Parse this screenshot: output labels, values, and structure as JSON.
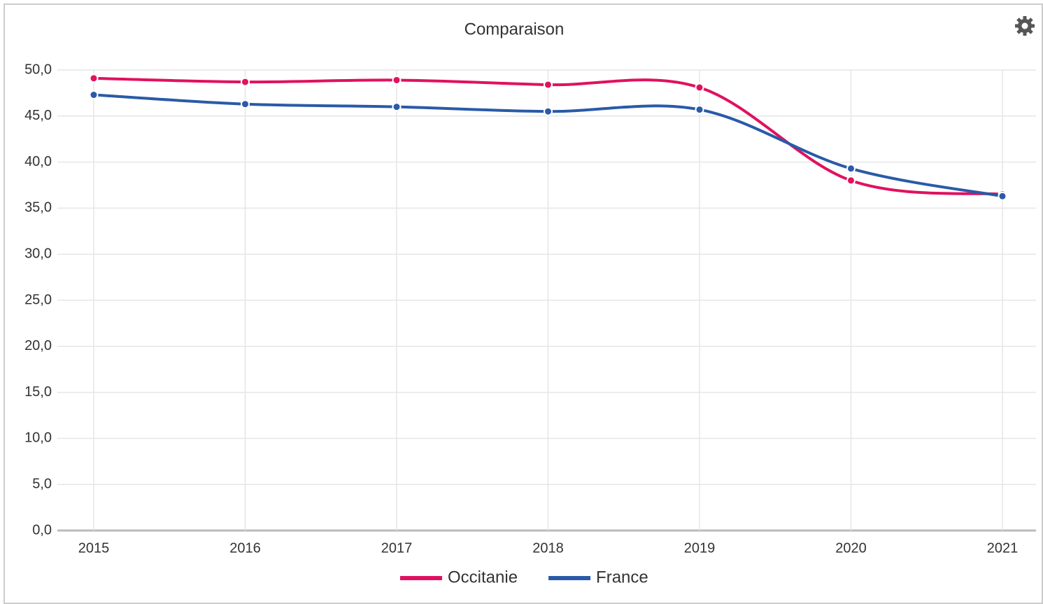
{
  "chart_data": {
    "type": "line",
    "title": "Comparaison",
    "categories": [
      "2015",
      "2016",
      "2017",
      "2018",
      "2019",
      "2020",
      "2021"
    ],
    "series": [
      {
        "name": "Occitanie",
        "color": "#e0115f",
        "values": [
          49.1,
          48.7,
          48.9,
          48.4,
          48.1,
          38.0,
          36.5
        ]
      },
      {
        "name": "France",
        "color": "#2a5aa8",
        "values": [
          47.3,
          46.3,
          46.0,
          45.5,
          45.7,
          39.3,
          36.3
        ]
      }
    ],
    "ylim": [
      0,
      50
    ],
    "yticks": [
      {
        "value": 0,
        "label": "0,0"
      },
      {
        "value": 5,
        "label": "5,0"
      },
      {
        "value": 10,
        "label": "10,0"
      },
      {
        "value": 15,
        "label": "15,0"
      },
      {
        "value": 20,
        "label": "20,0"
      },
      {
        "value": 25,
        "label": "25,0"
      },
      {
        "value": 30,
        "label": "30,0"
      },
      {
        "value": 35,
        "label": "35,0"
      },
      {
        "value": 40,
        "label": "40,0"
      },
      {
        "value": 45,
        "label": "45,0"
      },
      {
        "value": 50,
        "label": "50,0"
      }
    ],
    "grid": true
  }
}
